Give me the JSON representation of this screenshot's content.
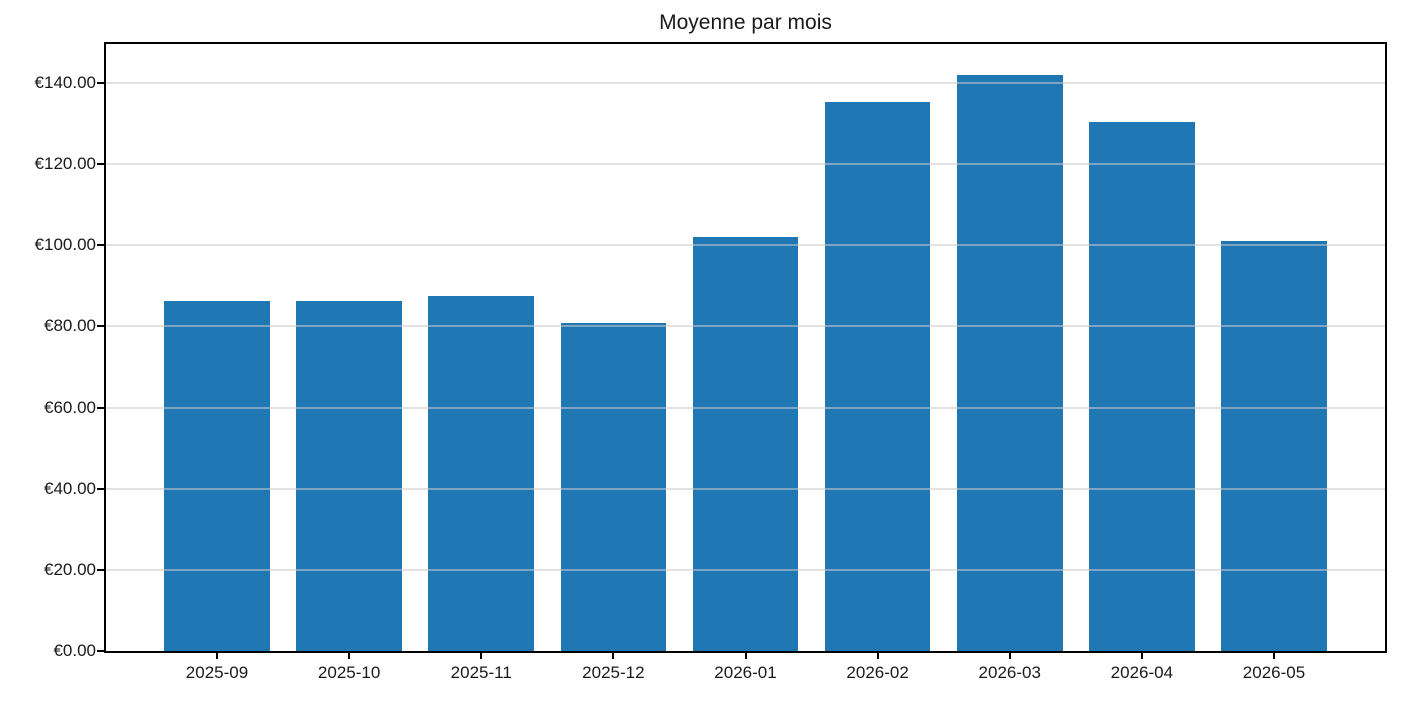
{
  "chart_data": {
    "type": "bar",
    "title": "Moyenne par mois",
    "categories": [
      "2025-09",
      "2025-10",
      "2025-11",
      "2025-12",
      "2026-01",
      "2026-02",
      "2026-03",
      "2026-04",
      "2026-05"
    ],
    "values": [
      86.3,
      86.2,
      87.6,
      80.8,
      102.0,
      135.3,
      142.0,
      130.3,
      101.0
    ],
    "currency": "EUR",
    "y_ticks": [
      0,
      20,
      40,
      60,
      80,
      100,
      120,
      140
    ],
    "y_tick_labels": [
      "€0.00",
      "€20.00",
      "€40.00",
      "€60.00",
      "€80.00",
      "€100.00",
      "€120.00",
      "€140.00"
    ],
    "xlabel": "",
    "ylabel": "",
    "ylim": [
      0,
      149.6
    ],
    "xlim_units": [
      -0.84,
      8.84
    ],
    "bar_width_units": 0.8,
    "grid": "horizontal",
    "grid_over_bars": true,
    "legend": "none",
    "colors": {
      "bar": "#1f77b4",
      "grid": "rgba(202, 202, 202, 0.55)",
      "spine": "#000000",
      "text": "#1a1a1a",
      "background": "#ffffff"
    }
  }
}
